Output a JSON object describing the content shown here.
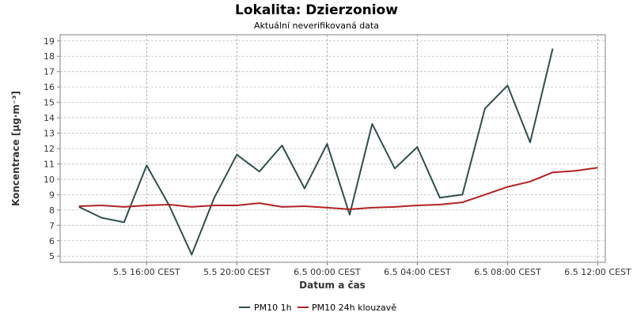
{
  "chart_data": {
    "type": "line",
    "title": "Lokalita: Dzierzoniow",
    "subtitle": "Aktuální neverifikovaná data",
    "xlabel": "Datum a čas",
    "ylabel": "Koncentrace [µg·m⁻³]",
    "ylim": [
      4.6,
      19.4
    ],
    "yticks": [
      5,
      6,
      7,
      8,
      9,
      10,
      11,
      12,
      13,
      14,
      15,
      16,
      17,
      18,
      19
    ],
    "xlim": [
      "2024-05-05T12:10",
      "2024-05-06T12:20"
    ],
    "xticks": [
      {
        "label": "5.5 16:00 CEST",
        "x": "2024-05-05T16:00"
      },
      {
        "label": "5.5 20:00 CEST",
        "x": "2024-05-05T20:00"
      },
      {
        "label": "6.5 00:00 CEST",
        "x": "2024-05-06T00:00"
      },
      {
        "label": "6.5 04:00 CEST",
        "x": "2024-05-06T04:00"
      },
      {
        "label": "6.5 08:00 CEST",
        "x": "2024-05-06T08:00"
      },
      {
        "label": "6.5 12:00 CEST",
        "x": "2024-05-06T12:00"
      }
    ],
    "grid": true,
    "legend_position": "bottom-center",
    "x": [
      "2024-05-05T13:00",
      "2024-05-05T14:00",
      "2024-05-05T15:00",
      "2024-05-05T16:00",
      "2024-05-05T17:00",
      "2024-05-05T18:00",
      "2024-05-05T19:00",
      "2024-05-05T20:00",
      "2024-05-05T21:00",
      "2024-05-05T22:00",
      "2024-05-05T23:00",
      "2024-05-06T00:00",
      "2024-05-06T01:00",
      "2024-05-06T02:00",
      "2024-05-06T03:00",
      "2024-05-06T04:00",
      "2024-05-06T05:00",
      "2024-05-06T06:00",
      "2024-05-06T07:00",
      "2024-05-06T08:00",
      "2024-05-06T09:00",
      "2024-05-06T10:00",
      "2024-05-06T11:00",
      "2024-05-06T12:00"
    ],
    "series": [
      {
        "name": "PM10 1h",
        "color": "#2f4f4f",
        "values": [
          8.2,
          7.5,
          7.2,
          10.9,
          8.3,
          5.1,
          8.8,
          11.6,
          10.5,
          12.2,
          9.4,
          12.3,
          7.7,
          13.6,
          10.7,
          12.1,
          8.8,
          9.0,
          14.6,
          16.1,
          12.4,
          18.5,
          null,
          null
        ]
      },
      {
        "name": "PM10 24h klouzavě",
        "color": "#b22222",
        "values": [
          8.25,
          8.3,
          8.2,
          8.3,
          8.35,
          8.2,
          8.3,
          8.3,
          8.45,
          8.2,
          8.25,
          8.15,
          8.05,
          8.15,
          8.2,
          8.3,
          8.35,
          8.5,
          9.0,
          9.5,
          9.85,
          10.45,
          10.55,
          10.75
        ]
      }
    ]
  }
}
